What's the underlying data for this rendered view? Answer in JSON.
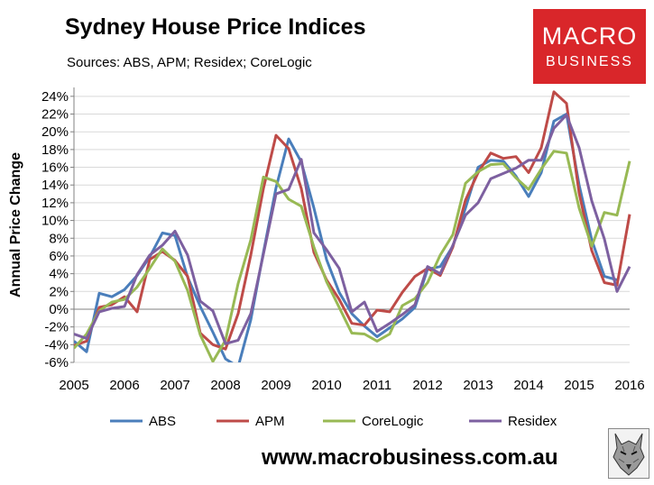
{
  "header": {
    "title": "Sydney House Price Indices",
    "subtitle": "Sources: ABS, APM; Residex; CoreLogic"
  },
  "logo": {
    "line1": "MACRO",
    "line2": "BUSINESS",
    "color": "#d9262a"
  },
  "footer": {
    "url": "www.macrobusiness.com.au"
  },
  "chart_data": {
    "type": "line",
    "ylabel": "Annual Price Change",
    "xlabel": "",
    "xlim": [
      2005,
      2016
    ],
    "ylim": [
      -6,
      25
    ],
    "yticks": [
      -6,
      -4,
      -2,
      0,
      2,
      4,
      6,
      8,
      10,
      12,
      14,
      16,
      18,
      20,
      22,
      24
    ],
    "ytick_labels": [
      "-6%",
      "-4%",
      "-2%",
      "0%",
      "2%",
      "4%",
      "6%",
      "8%",
      "10%",
      "12%",
      "14%",
      "16%",
      "18%",
      "20%",
      "22%",
      "24%"
    ],
    "xticks": [
      2005,
      2006,
      2007,
      2008,
      2009,
      2010,
      2011,
      2012,
      2013,
      2014,
      2015,
      2016
    ],
    "xtick_labels": [
      "2005",
      "2006",
      "2007",
      "2008",
      "2009",
      "2010",
      "2011",
      "2012",
      "2013",
      "2014",
      "2015",
      "2016"
    ],
    "grid": "horizontal",
    "legend_position": "bottom",
    "series": [
      {
        "name": "ABS",
        "color": "#4a7ebb",
        "x": [
          2005,
          2005.25,
          2005.5,
          2005.75,
          2006,
          2006.25,
          2006.5,
          2006.75,
          2007,
          2007.25,
          2007.5,
          2007.75,
          2008,
          2008.25,
          2008.5,
          2008.75,
          2009,
          2009.25,
          2009.5,
          2009.75,
          2010,
          2010.25,
          2010.5,
          2010.75,
          2011,
          2011.25,
          2011.5,
          2011.75,
          2012,
          2012.25,
          2012.5,
          2012.75,
          2013,
          2013.25,
          2013.5,
          2013.75,
          2014,
          2014.25,
          2014.5,
          2014.75,
          2015,
          2015.25,
          2015.5,
          2015.75,
          2016
        ],
        "values": [
          -3.6,
          -4.8,
          1.8,
          1.4,
          2.2,
          3.8,
          5.9,
          8.6,
          8.3,
          3.6,
          0.3,
          -2.6,
          -5.6,
          -6.5,
          -1.2,
          6.4,
          13.7,
          19.2,
          16.6,
          11.4,
          5.6,
          1.9,
          -0.5,
          -1.9,
          -3.1,
          -2.1,
          -1.1,
          0.2,
          4.5,
          4.8,
          7.1,
          11.4,
          16.0,
          16.8,
          16.7,
          15.0,
          12.7,
          15.4,
          21.2,
          22.0,
          14.0,
          7.8,
          3.7,
          3.3,
          null
        ]
      },
      {
        "name": "APM",
        "color": "#be4b48",
        "x": [
          2005,
          2005.25,
          2005.5,
          2005.75,
          2006,
          2006.25,
          2006.5,
          2006.75,
          2007,
          2007.25,
          2007.5,
          2007.75,
          2008,
          2008.25,
          2008.5,
          2008.75,
          2009,
          2009.25,
          2009.5,
          2009.75,
          2010,
          2010.25,
          2010.5,
          2010.75,
          2011,
          2011.25,
          2011.5,
          2011.75,
          2012,
          2012.25,
          2012.5,
          2012.75,
          2013,
          2013.25,
          2013.5,
          2013.75,
          2014,
          2014.25,
          2014.5,
          2014.75,
          2015,
          2015.25,
          2015.5,
          2015.75,
          2016
        ],
        "values": [
          -4.1,
          -3.6,
          0.2,
          0.5,
          1.4,
          -0.3,
          5.6,
          6.5,
          5.5,
          3.7,
          -2.7,
          -4.0,
          -4.5,
          -0.5,
          6.1,
          13.6,
          19.6,
          18.1,
          13.6,
          6.4,
          3.3,
          1.1,
          -1.6,
          -1.8,
          -0.1,
          -0.3,
          1.9,
          3.7,
          4.6,
          3.8,
          7.0,
          12.3,
          15.4,
          17.6,
          17.0,
          17.2,
          15.4,
          18.2,
          24.5,
          23.2,
          13.1,
          6.6,
          3.0,
          2.7,
          10.7
        ]
      },
      {
        "name": "CoreLogic",
        "color": "#98b954",
        "x": [
          2005,
          2005.25,
          2005.5,
          2005.75,
          2006,
          2006.25,
          2006.5,
          2006.75,
          2007,
          2007.25,
          2007.5,
          2007.75,
          2008,
          2008.25,
          2008.5,
          2008.75,
          2009,
          2009.25,
          2009.5,
          2009.75,
          2010,
          2010.25,
          2010.5,
          2010.75,
          2011,
          2011.25,
          2011.5,
          2011.75,
          2012,
          2012.25,
          2012.5,
          2012.75,
          2013,
          2013.25,
          2013.5,
          2013.75,
          2014,
          2014.25,
          2014.5,
          2014.75,
          2015,
          2015.25,
          2015.5,
          2015.75,
          2016
        ],
        "values": [
          -4.4,
          -2.8,
          -0.2,
          0.8,
          1.1,
          2.5,
          4.6,
          6.8,
          5.4,
          2.1,
          -2.9,
          -5.9,
          -3.5,
          2.9,
          7.8,
          14.9,
          14.4,
          12.4,
          11.6,
          7.0,
          3.1,
          0.2,
          -2.7,
          -2.8,
          -3.6,
          -2.8,
          0.4,
          1.2,
          3.0,
          6.1,
          8.4,
          14.2,
          15.5,
          16.3,
          16.4,
          14.8,
          13.5,
          15.8,
          17.8,
          17.6,
          11.4,
          7.1,
          10.9,
          10.6,
          16.7
        ]
      },
      {
        "name": "Residex",
        "color": "#7d60a0",
        "x": [
          2005,
          2005.25,
          2005.5,
          2005.75,
          2006,
          2006.25,
          2006.5,
          2006.75,
          2007,
          2007.25,
          2007.5,
          2007.75,
          2008,
          2008.25,
          2008.5,
          2008.75,
          2009,
          2009.25,
          2009.5,
          2009.75,
          2010,
          2010.25,
          2010.5,
          2010.75,
          2011,
          2011.25,
          2011.5,
          2011.75,
          2012,
          2012.25,
          2012.5,
          2012.75,
          2013,
          2013.25,
          2013.5,
          2013.75,
          2014,
          2014.25,
          2014.5,
          2014.75,
          2015,
          2015.25,
          2015.5,
          2015.75,
          2016
        ],
        "values": [
          -2.8,
          -3.3,
          -0.3,
          0.1,
          0.3,
          3.9,
          6.1,
          7.2,
          8.8,
          6.1,
          0.9,
          -0.2,
          -3.9,
          -3.5,
          -0.5,
          6.2,
          13.0,
          13.5,
          16.9,
          8.6,
          6.7,
          4.6,
          -0.3,
          0.8,
          -2.5,
          -1.6,
          -0.6,
          0.5,
          4.8,
          4.0,
          7.2,
          10.6,
          12.0,
          14.7,
          15.3,
          15.9,
          16.8,
          16.8,
          20.4,
          21.9,
          18.2,
          12.2,
          7.9,
          2.0,
          4.8
        ]
      }
    ]
  }
}
